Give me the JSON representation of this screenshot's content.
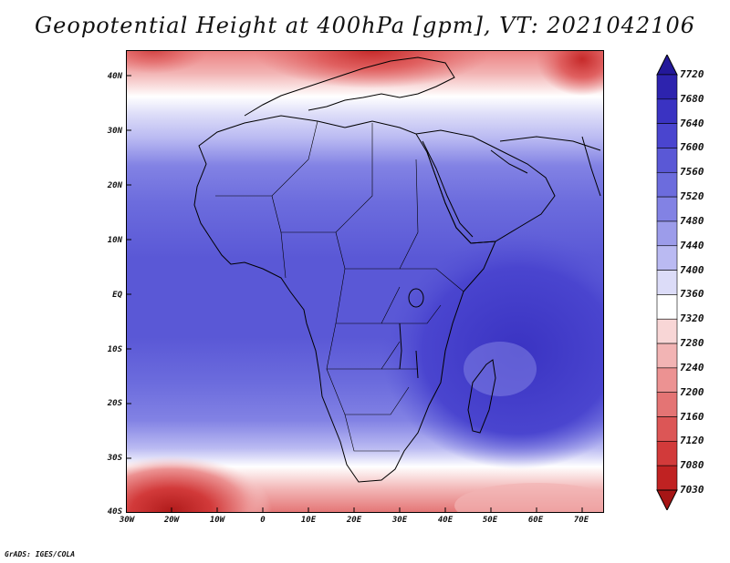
{
  "title": "Geopotential Height at 400hPa [gpm], VT: 2021042106",
  "footer": "GrADS: IGES/COLA",
  "lat_ticks": [
    "40N",
    "30N",
    "20N",
    "10N",
    "EQ",
    "10S",
    "20S",
    "30S",
    "40S"
  ],
  "lon_ticks": [
    "30W",
    "20W",
    "10W",
    "0",
    "10E",
    "20E",
    "30E",
    "40E",
    "50E",
    "60E",
    "70E"
  ],
  "colorbar": {
    "labels": [
      "7720",
      "7680",
      "7640",
      "7600",
      "7560",
      "7520",
      "7480",
      "7440",
      "7400",
      "7360",
      "7320",
      "7280",
      "7240",
      "7200",
      "7160",
      "7120",
      "7080",
      "7030"
    ],
    "colors": [
      "#23189a",
      "#2d23ae",
      "#3a33c2",
      "#4a45cf",
      "#5a58d6",
      "#6c6cdd",
      "#8282e4",
      "#9c9cea",
      "#babaf2",
      "#dcdcf8",
      "#ffffff",
      "#f8d6d6",
      "#f2b4b4",
      "#ec9292",
      "#e47474",
      "#dc5656",
      "#d23a3a",
      "#c02222",
      "#a61515"
    ]
  },
  "chart_data": {
    "type": "heatmap",
    "title": "Geopotential Height at 400hPa [gpm], VT: 2021042106",
    "variable": "Geopotential Height",
    "level": "400hPa",
    "units": "gpm",
    "valid_time": "2021042106",
    "lon_range": [
      -30,
      75
    ],
    "lat_range": [
      -40,
      45
    ],
    "value_range": [
      7030,
      7720
    ],
    "levels": [
      7030,
      7080,
      7120,
      7160,
      7200,
      7240,
      7280,
      7320,
      7360,
      7400,
      7440,
      7480,
      7520,
      7560,
      7600,
      7640,
      7680,
      7720
    ]
  }
}
